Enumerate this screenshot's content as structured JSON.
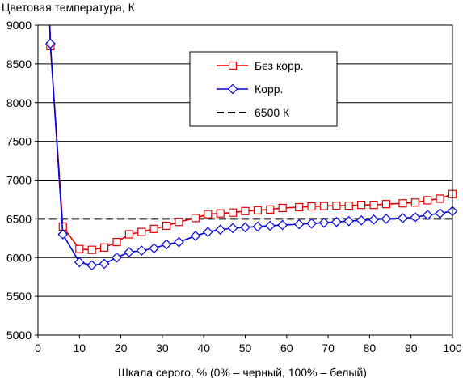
{
  "chart_data": {
    "type": "line",
    "title": "",
    "ylabel": "Цветовая температура, К",
    "xlabel": "Шкала серого, % (0% – черный, 100% – белый)",
    "xlim": [
      0,
      100
    ],
    "ylim": [
      5000,
      9000
    ],
    "xticks": [
      "0",
      "10",
      "20",
      "30",
      "40",
      "50",
      "60",
      "70",
      "80",
      "90",
      "100"
    ],
    "yticks": [
      "5000",
      "5500",
      "6000",
      "6500",
      "7000",
      "7500",
      "8000",
      "8500",
      "9000"
    ],
    "grid": "horizontal",
    "legend_position": "top-right",
    "series": [
      {
        "name": "Без корр.",
        "color": "#e00000",
        "marker": "square",
        "x": [
          3,
          6,
          10,
          13,
          16,
          19,
          22,
          25,
          28,
          31,
          34,
          38,
          41,
          44,
          47,
          50,
          53,
          56,
          59,
          63,
          66,
          69,
          72,
          75,
          78,
          81,
          84,
          88,
          91,
          94,
          97,
          100
        ],
        "y": [
          8730,
          6400,
          6110,
          6100,
          6130,
          6200,
          6300,
          6330,
          6370,
          6410,
          6460,
          6510,
          6560,
          6570,
          6580,
          6600,
          6610,
          6620,
          6640,
          6650,
          6660,
          6665,
          6670,
          6670,
          6680,
          6680,
          6690,
          6700,
          6710,
          6740,
          6760,
          6820
        ]
      },
      {
        "name": "Корр.",
        "color": "#0000e0",
        "marker": "diamond",
        "x": [
          3,
          6,
          10,
          13,
          16,
          19,
          22,
          25,
          28,
          31,
          34,
          38,
          41,
          44,
          47,
          50,
          53,
          56,
          59,
          63,
          66,
          69,
          72,
          75,
          78,
          81,
          84,
          88,
          91,
          94,
          97,
          100
        ],
        "y": [
          8760,
          6300,
          5940,
          5900,
          5920,
          6000,
          6070,
          6090,
          6120,
          6170,
          6200,
          6280,
          6330,
          6360,
          6380,
          6390,
          6400,
          6410,
          6420,
          6430,
          6440,
          6450,
          6460,
          6470,
          6480,
          6490,
          6500,
          6510,
          6520,
          6550,
          6570,
          6600
        ]
      }
    ],
    "reference": {
      "name": "6500 К",
      "y": 6500,
      "color": "#000000",
      "style": "dashed"
    }
  }
}
